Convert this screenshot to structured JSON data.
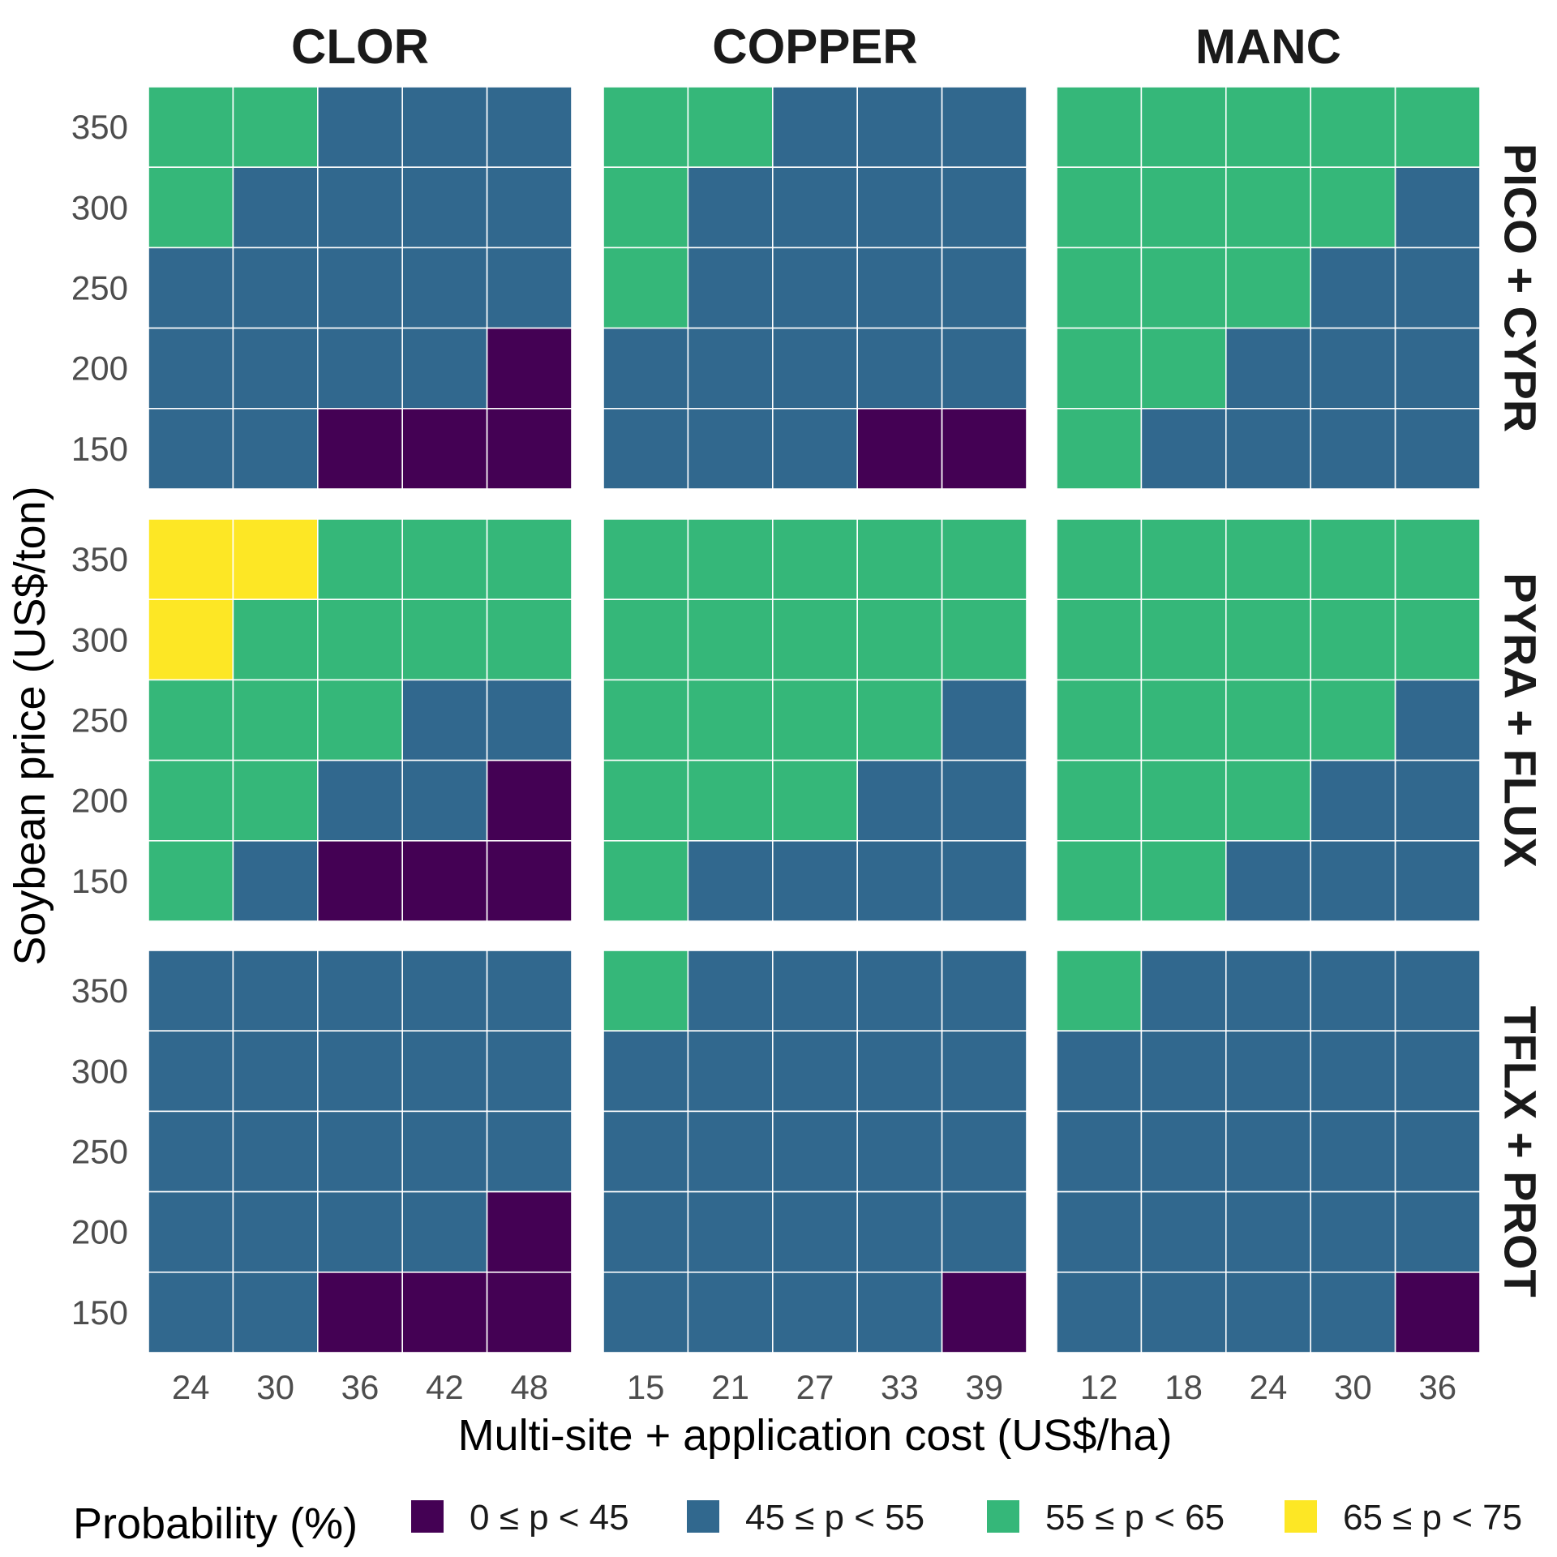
{
  "chart_data": {
    "type": "heatmap",
    "xlabel": "Multi-site + application cost (US$/ha)",
    "ylabel": "Soybean price (US$/ton)",
    "columns": [
      "CLOR",
      "COPPER",
      "MANC"
    ],
    "rows": [
      "PICO + CYPR",
      "PYRA + FLUX",
      "TFLX + PROT"
    ],
    "x_ticks": {
      "CLOR": [
        "24",
        "30",
        "36",
        "42",
        "48"
      ],
      "COPPER": [
        "15",
        "21",
        "27",
        "33",
        "39"
      ],
      "MANC": [
        "12",
        "18",
        "24",
        "30",
        "36"
      ]
    },
    "y_ticks": [
      "350",
      "300",
      "250",
      "200",
      "150"
    ],
    "legend": {
      "title": "Probability (%)",
      "position": "bottom",
      "items": [
        {
          "label": "0 ≤ p < 45",
          "color": "#440154"
        },
        {
          "label": "45 ≤ p < 55",
          "color": "#31688E"
        },
        {
          "label": "55 ≤ p < 65",
          "color": "#35B779"
        },
        {
          "label": "65 ≤ p < 75",
          "color": "#FDE725"
        }
      ]
    },
    "panels": [
      {
        "row": "PICO + CYPR",
        "col": "CLOR",
        "grid": [
          [
            2,
            2,
            1,
            1,
            1
          ],
          [
            2,
            1,
            1,
            1,
            1
          ],
          [
            1,
            1,
            1,
            1,
            1
          ],
          [
            1,
            1,
            1,
            1,
            0
          ],
          [
            1,
            1,
            0,
            0,
            0
          ]
        ]
      },
      {
        "row": "PICO + CYPR",
        "col": "COPPER",
        "grid": [
          [
            2,
            2,
            1,
            1,
            1
          ],
          [
            2,
            1,
            1,
            1,
            1
          ],
          [
            2,
            1,
            1,
            1,
            1
          ],
          [
            1,
            1,
            1,
            1,
            1
          ],
          [
            1,
            1,
            1,
            0,
            0
          ]
        ]
      },
      {
        "row": "PICO + CYPR",
        "col": "MANC",
        "grid": [
          [
            2,
            2,
            2,
            2,
            2
          ],
          [
            2,
            2,
            2,
            2,
            1
          ],
          [
            2,
            2,
            2,
            1,
            1
          ],
          [
            2,
            2,
            1,
            1,
            1
          ],
          [
            2,
            1,
            1,
            1,
            1
          ]
        ]
      },
      {
        "row": "PYRA + FLUX",
        "col": "CLOR",
        "grid": [
          [
            3,
            3,
            2,
            2,
            2
          ],
          [
            3,
            2,
            2,
            2,
            2
          ],
          [
            2,
            2,
            2,
            1,
            1
          ],
          [
            2,
            2,
            1,
            1,
            0
          ],
          [
            2,
            1,
            0,
            0,
            0
          ]
        ]
      },
      {
        "row": "PYRA + FLUX",
        "col": "COPPER",
        "grid": [
          [
            2,
            2,
            2,
            2,
            2
          ],
          [
            2,
            2,
            2,
            2,
            2
          ],
          [
            2,
            2,
            2,
            2,
            1
          ],
          [
            2,
            2,
            2,
            1,
            1
          ],
          [
            2,
            1,
            1,
            1,
            1
          ]
        ]
      },
      {
        "row": "PYRA + FLUX",
        "col": "MANC",
        "grid": [
          [
            2,
            2,
            2,
            2,
            2
          ],
          [
            2,
            2,
            2,
            2,
            2
          ],
          [
            2,
            2,
            2,
            2,
            1
          ],
          [
            2,
            2,
            2,
            1,
            1
          ],
          [
            2,
            2,
            1,
            1,
            1
          ]
        ]
      },
      {
        "row": "TFLX + PROT",
        "col": "CLOR",
        "grid": [
          [
            1,
            1,
            1,
            1,
            1
          ],
          [
            1,
            1,
            1,
            1,
            1
          ],
          [
            1,
            1,
            1,
            1,
            1
          ],
          [
            1,
            1,
            1,
            1,
            0
          ],
          [
            1,
            1,
            0,
            0,
            0
          ]
        ]
      },
      {
        "row": "TFLX + PROT",
        "col": "COPPER",
        "grid": [
          [
            2,
            1,
            1,
            1,
            1
          ],
          [
            1,
            1,
            1,
            1,
            1
          ],
          [
            1,
            1,
            1,
            1,
            1
          ],
          [
            1,
            1,
            1,
            1,
            1
          ],
          [
            1,
            1,
            1,
            1,
            0
          ]
        ]
      },
      {
        "row": "TFLX + PROT",
        "col": "MANC",
        "grid": [
          [
            2,
            1,
            1,
            1,
            1
          ],
          [
            1,
            1,
            1,
            1,
            1
          ],
          [
            1,
            1,
            1,
            1,
            1
          ],
          [
            1,
            1,
            1,
            1,
            1
          ],
          [
            1,
            1,
            1,
            1,
            0
          ]
        ]
      }
    ]
  }
}
